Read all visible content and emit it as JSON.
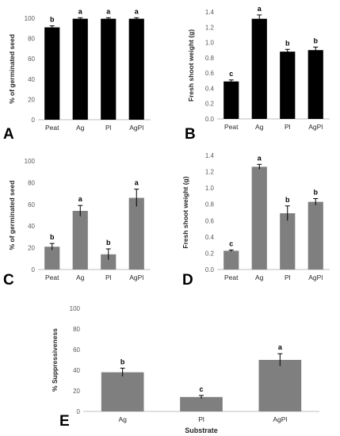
{
  "chart_data": [
    {
      "panel": "A",
      "type": "bar",
      "color": "#000000",
      "ylabel": "% of germinated seed",
      "xlabel": "",
      "ylim": [
        0,
        100
      ],
      "yticks": [
        0,
        20,
        40,
        60,
        80,
        100
      ],
      "ytick_decimals": 0,
      "categories": [
        "Peat",
        "Ag",
        "Pl",
        "AgPl"
      ],
      "values": [
        91,
        99.5,
        99.5,
        99.5
      ],
      "errors": [
        1.5,
        1,
        1,
        1
      ],
      "letters": [
        "b",
        "a",
        "a",
        "a"
      ]
    },
    {
      "panel": "B",
      "type": "bar",
      "color": "#000000",
      "ylabel": "Fresh shoot weight (g)",
      "xlabel": "",
      "ylim": [
        0,
        1.4
      ],
      "yticks": [
        0,
        0.2,
        0.4,
        0.6,
        0.8,
        1,
        1.2,
        1.4
      ],
      "ytick_decimals": 1,
      "categories": [
        "Peat",
        "Ag",
        "Pl",
        "AgPl"
      ],
      "values": [
        0.49,
        1.31,
        0.88,
        0.9
      ],
      "errors": [
        0.02,
        0.05,
        0.03,
        0.04
      ],
      "letters": [
        "c",
        "a",
        "b",
        "b"
      ]
    },
    {
      "panel": "C",
      "type": "bar",
      "color": "#7f7f7f",
      "ylabel": "% of germinated seed",
      "xlabel": "",
      "ylim": [
        0,
        100
      ],
      "yticks": [
        0,
        20,
        40,
        60,
        80,
        100
      ],
      "ytick_decimals": 0,
      "categories": [
        "Peat",
        "Ag",
        "Pl",
        "AgPl"
      ],
      "values": [
        21,
        54,
        14,
        66
      ],
      "errors": [
        3,
        5,
        5,
        8
      ],
      "letters": [
        "b",
        "a",
        "b",
        "a"
      ]
    },
    {
      "panel": "D",
      "type": "bar",
      "color": "#7f7f7f",
      "ylabel": "Fresh shoot weight (g)",
      "xlabel": "",
      "ylim": [
        0,
        1.4
      ],
      "yticks": [
        0,
        0.2,
        0.4,
        0.6,
        0.8,
        1,
        1.2,
        1.4
      ],
      "ytick_decimals": 1,
      "categories": [
        "Peat",
        "Ag",
        "Pl",
        "AgPl"
      ],
      "values": [
        0.23,
        1.26,
        0.69,
        0.83
      ],
      "errors": [
        0.01,
        0.03,
        0.09,
        0.04
      ],
      "letters": [
        "c",
        "a",
        "b",
        "b"
      ]
    },
    {
      "panel": "E",
      "type": "bar",
      "color": "#7f7f7f",
      "ylabel": "% Suppressiveness",
      "xlabel": "Substrate",
      "ylim": [
        0,
        100
      ],
      "yticks": [
        0,
        20,
        40,
        60,
        80,
        100
      ],
      "ytick_decimals": 0,
      "categories": [
        "Ag",
        "Pl",
        "AgPl"
      ],
      "values": [
        38,
        14,
        50
      ],
      "errors": [
        4,
        1.5,
        6
      ],
      "letters": [
        "b",
        "c",
        "a"
      ]
    }
  ]
}
